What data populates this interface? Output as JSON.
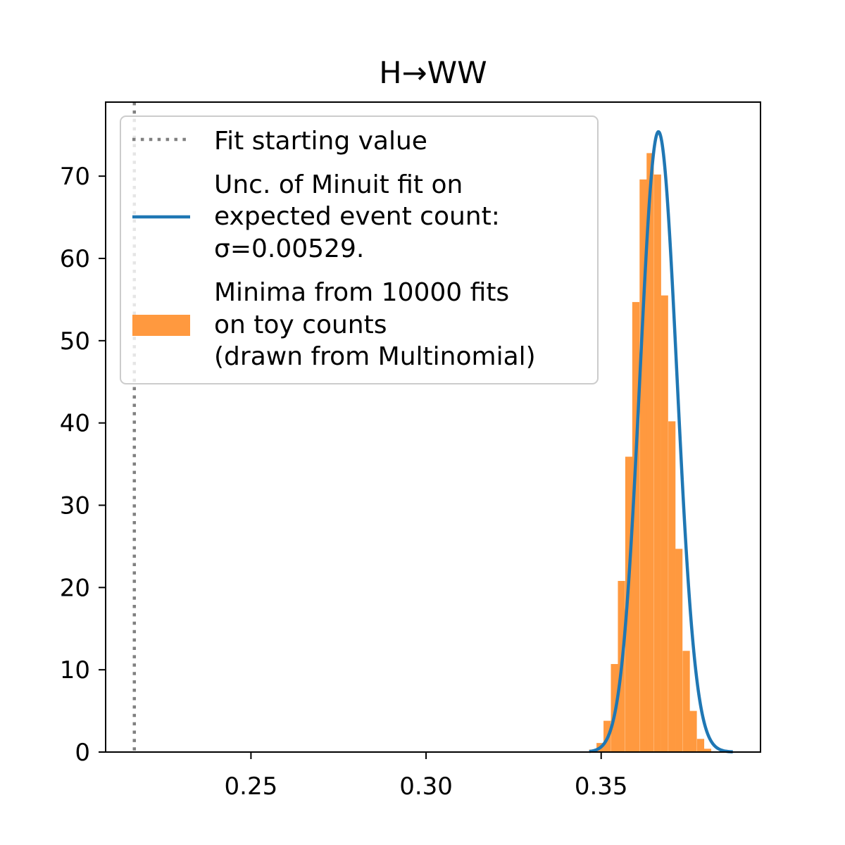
{
  "chart_data": {
    "type": "bar",
    "title": "H→WW",
    "xlabel": "",
    "ylabel": "",
    "xlim": [
      0.2085,
      0.3955
    ],
    "ylim": [
      0,
      79
    ],
    "x_ticks": [
      0.25,
      0.3,
      0.35
    ],
    "x_tick_labels": [
      "0.25",
      "0.30",
      "0.35"
    ],
    "y_ticks": [
      0,
      10,
      20,
      30,
      40,
      50,
      60,
      70
    ],
    "y_tick_labels": [
      "0",
      "10",
      "20",
      "30",
      "40",
      "50",
      "60",
      "70"
    ],
    "grid": false,
    "legend_placement": "upper left",
    "starting_value": {
      "x": 0.2167,
      "label": "Fit starting value",
      "color": "#808080",
      "style": "dotted"
    },
    "gaussian": {
      "mean": 0.36636,
      "sigma": 0.00529,
      "peak": 75.4,
      "x_range": [
        0.3466,
        0.3876
      ],
      "label_lines": [
        "Unc. of Minuit fit on",
        "expected event count:",
        "σ=0.00529."
      ],
      "color": "#1f77b4"
    },
    "histogram": {
      "label_lines": [
        "Minima from 10000 fits",
        "on toy counts",
        "(drawn from Multinomial)"
      ],
      "color": "#ff993f",
      "bin_width": 0.00205,
      "bins": [
        {
          "x": 0.3476,
          "value": 0.3
        },
        {
          "x": 0.3497,
          "value": 1.1
        },
        {
          "x": 0.3517,
          "value": 3.8
        },
        {
          "x": 0.3538,
          "value": 10.7
        },
        {
          "x": 0.3558,
          "value": 20.8
        },
        {
          "x": 0.3579,
          "value": 35.9
        },
        {
          "x": 0.3599,
          "value": 54.7
        },
        {
          "x": 0.362,
          "value": 69.6
        },
        {
          "x": 0.364,
          "value": 72.8
        },
        {
          "x": 0.3661,
          "value": 70.2
        },
        {
          "x": 0.3681,
          "value": 55.5
        },
        {
          "x": 0.3702,
          "value": 40.2
        },
        {
          "x": 0.3722,
          "value": 24.7
        },
        {
          "x": 0.3743,
          "value": 12.3
        },
        {
          "x": 0.3763,
          "value": 5.0
        },
        {
          "x": 0.3784,
          "value": 1.6
        },
        {
          "x": 0.3804,
          "value": 0.4
        }
      ]
    }
  }
}
